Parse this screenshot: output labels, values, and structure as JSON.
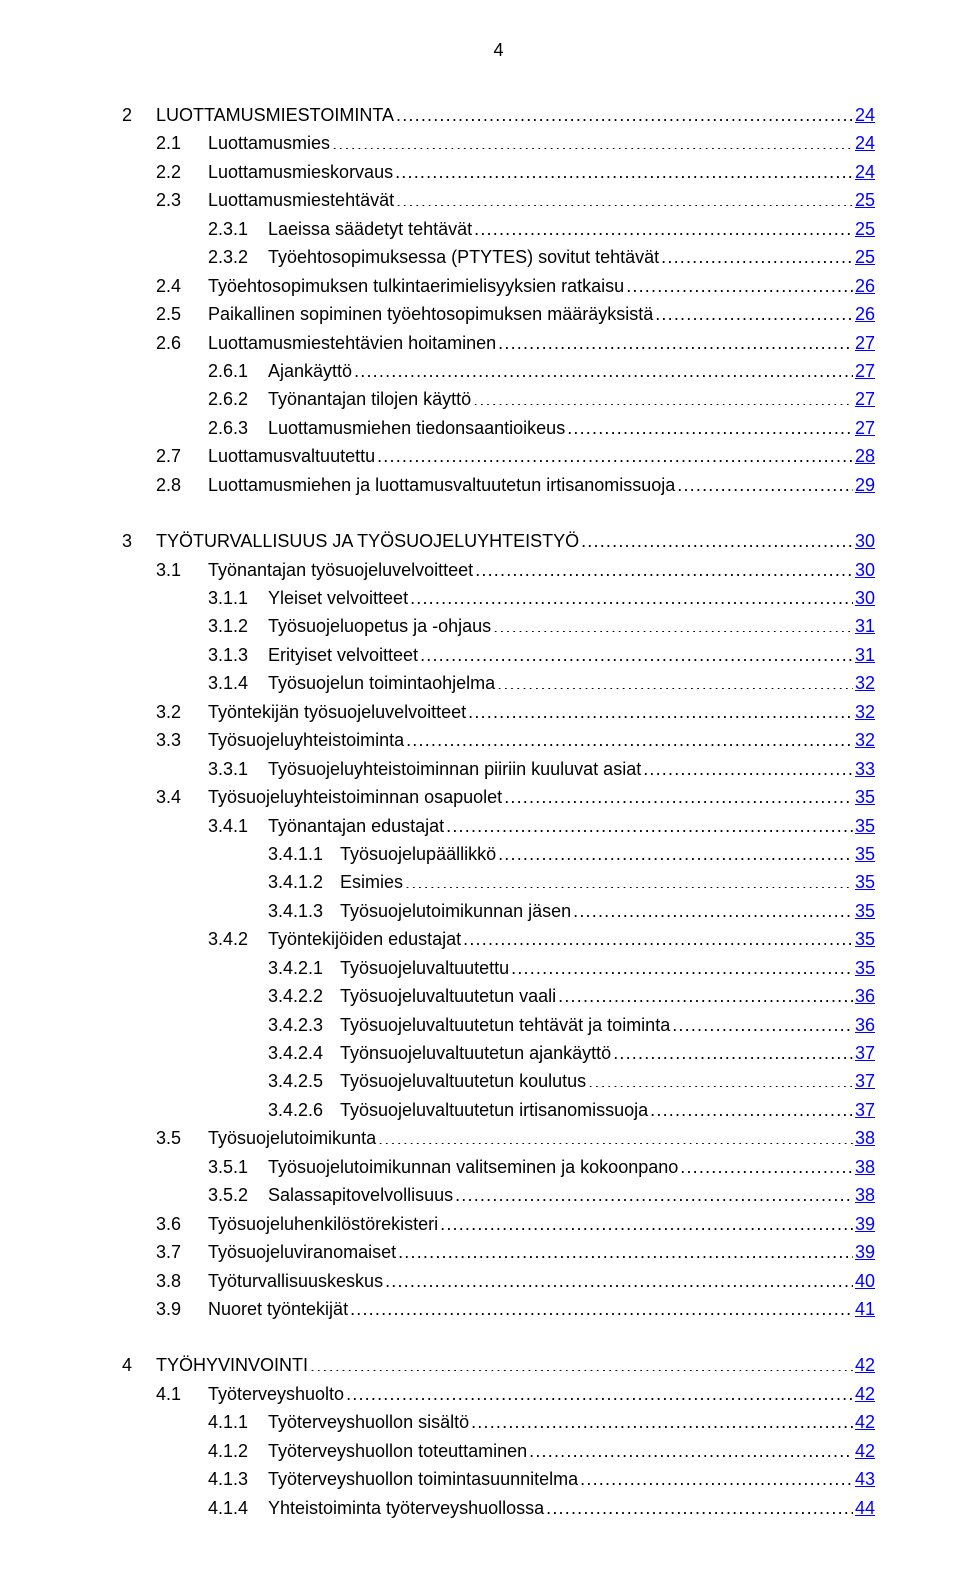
{
  "page_number": "4",
  "link_color": "#0000ff",
  "text_color": "#000000",
  "font_size_pt": 12,
  "chapters": [
    {
      "entries": [
        {
          "level": 0,
          "num": "2",
          "title": "LUOTTAMUSMIESTOIMINTA",
          "page": "24"
        },
        {
          "level": 1,
          "num": "2.1",
          "title": "Luottamusmies",
          "page": "24"
        },
        {
          "level": 1,
          "num": "2.2",
          "title": "Luottamusmieskorvaus",
          "page": "24"
        },
        {
          "level": 1,
          "num": "2.3",
          "title": "Luottamusmiestehtävät",
          "page": "25"
        },
        {
          "level": 2,
          "num": "2.3.1",
          "title": "Laeissa säädetyt tehtävät",
          "page": "25"
        },
        {
          "level": 2,
          "num": "2.3.2",
          "title": "Työehtosopimuksessa (PTYTES) sovitut tehtävät",
          "page": "25"
        },
        {
          "level": 1,
          "num": "2.4",
          "title": "Työehtosopimuksen tulkintaerimielisyyksien ratkaisu",
          "page": "26"
        },
        {
          "level": 1,
          "num": "2.5",
          "title": "Paikallinen sopiminen työehtosopimuksen määräyksistä",
          "page": "26"
        },
        {
          "level": 1,
          "num": "2.6",
          "title": "Luottamusmiestehtävien hoitaminen",
          "page": "27"
        },
        {
          "level": 2,
          "num": "2.6.1",
          "title": "Ajankäyttö",
          "page": "27"
        },
        {
          "level": 2,
          "num": "2.6.2",
          "title": "Työnantajan tilojen käyttö",
          "page": "27"
        },
        {
          "level": 2,
          "num": "2.6.3",
          "title": "Luottamusmiehen tiedonsaantioikeus",
          "page": "27"
        },
        {
          "level": 1,
          "num": "2.7",
          "title": "Luottamusvaltuutettu",
          "page": "28"
        },
        {
          "level": 1,
          "num": "2.8",
          "title": "Luottamusmiehen ja luottamusvaltuutetun irtisanomissuoja",
          "page": "29"
        }
      ]
    },
    {
      "entries": [
        {
          "level": 0,
          "num": "3",
          "title": "TYÖTURVALLISUUS JA TYÖSUOJELUYHTEISTYÖ",
          "page": "30"
        },
        {
          "level": 1,
          "num": "3.1",
          "title": "Työnantajan työsuojeluvelvoitteet",
          "page": "30"
        },
        {
          "level": 2,
          "num": "3.1.1",
          "title": "Yleiset velvoitteet",
          "page": "30"
        },
        {
          "level": 2,
          "num": "3.1.2",
          "title": "Työsuojeluopetus ja -ohjaus",
          "page": "31"
        },
        {
          "level": 2,
          "num": "3.1.3",
          "title": "Erityiset velvoitteet",
          "page": "31"
        },
        {
          "level": 2,
          "num": "3.1.4",
          "title": "Työsuojelun toimintaohjelma",
          "page": "32"
        },
        {
          "level": 1,
          "num": "3.2",
          "title": "Työntekijän työsuojeluvelvoitteet",
          "page": "32"
        },
        {
          "level": 1,
          "num": "3.3",
          "title": "Työsuojeluyhteistoiminta",
          "page": "32"
        },
        {
          "level": 2,
          "num": "3.3.1",
          "title": "Työsuojeluyhteistoiminnan piiriin kuuluvat asiat",
          "page": "33"
        },
        {
          "level": 1,
          "num": "3.4",
          "title": "Työsuojeluyhteistoiminnan osapuolet",
          "page": "35"
        },
        {
          "level": 2,
          "num": "3.4.1",
          "title": "Työnantajan edustajat",
          "page": "35"
        },
        {
          "level": 3,
          "num": "3.4.1.1",
          "title": "Työsuojelupäällikkö",
          "page": "35"
        },
        {
          "level": 3,
          "num": "3.4.1.2",
          "title": "Esimies",
          "page": "35"
        },
        {
          "level": 3,
          "num": "3.4.1.3",
          "title": "Työsuojelutoimikunnan jäsen",
          "page": "35"
        },
        {
          "level": 2,
          "num": "3.4.2",
          "title": "Työntekijöiden edustajat",
          "page": "35"
        },
        {
          "level": 3,
          "num": "3.4.2.1",
          "title": "Työsuojeluvaltuutettu",
          "page": "35"
        },
        {
          "level": 3,
          "num": "3.4.2.2",
          "title": "Työsuojeluvaltuutetun vaali",
          "page": "36"
        },
        {
          "level": 3,
          "num": "3.4.2.3",
          "title": "Työsuojeluvaltuutetun tehtävät ja toiminta",
          "page": "36"
        },
        {
          "level": 3,
          "num": "3.4.2.4",
          "title": "Työnsuojeluvaltuutetun ajankäyttö",
          "page": "37"
        },
        {
          "level": 3,
          "num": "3.4.2.5",
          "title": "Työsuojeluvaltuutetun koulutus",
          "page": "37"
        },
        {
          "level": 3,
          "num": "3.4.2.6",
          "title": "Työsuojeluvaltuutetun irtisanomissuoja",
          "page": "37"
        },
        {
          "level": 1,
          "num": "3.5",
          "title": "Työsuojelutoimikunta",
          "page": "38"
        },
        {
          "level": 2,
          "num": "3.5.1",
          "title": "Työsuojelutoimikunnan valitseminen ja kokoonpano",
          "page": "38"
        },
        {
          "level": 2,
          "num": "3.5.2",
          "title": "Salassapitovelvollisuus",
          "page": "38"
        },
        {
          "level": 1,
          "num": "3.6",
          "title": "Työsuojeluhenkilöstörekisteri",
          "page": "39"
        },
        {
          "level": 1,
          "num": "3.7",
          "title": "Työsuojeluviranomaiset",
          "page": "39"
        },
        {
          "level": 1,
          "num": "3.8",
          "title": "Työturvallisuuskeskus",
          "page": "40"
        },
        {
          "level": 1,
          "num": "3.9",
          "title": "Nuoret työntekijät",
          "page": "41"
        }
      ]
    },
    {
      "entries": [
        {
          "level": 0,
          "num": "4",
          "title": "TYÖHYVINVOINTI",
          "page": "42"
        },
        {
          "level": 1,
          "num": "4.1",
          "title": "Työterveyshuolto",
          "page": "42"
        },
        {
          "level": 2,
          "num": "4.1.1",
          "title": "Työterveyshuollon sisältö",
          "page": "42"
        },
        {
          "level": 2,
          "num": "4.1.2",
          "title": "Työterveyshuollon toteuttaminen",
          "page": "42"
        },
        {
          "level": 2,
          "num": "4.1.3",
          "title": "Työterveyshuollon toimintasuunnitelma",
          "page": "43"
        },
        {
          "level": 2,
          "num": "4.1.4",
          "title": "Yhteistoiminta työterveyshuollossa",
          "page": "44"
        }
      ]
    }
  ]
}
